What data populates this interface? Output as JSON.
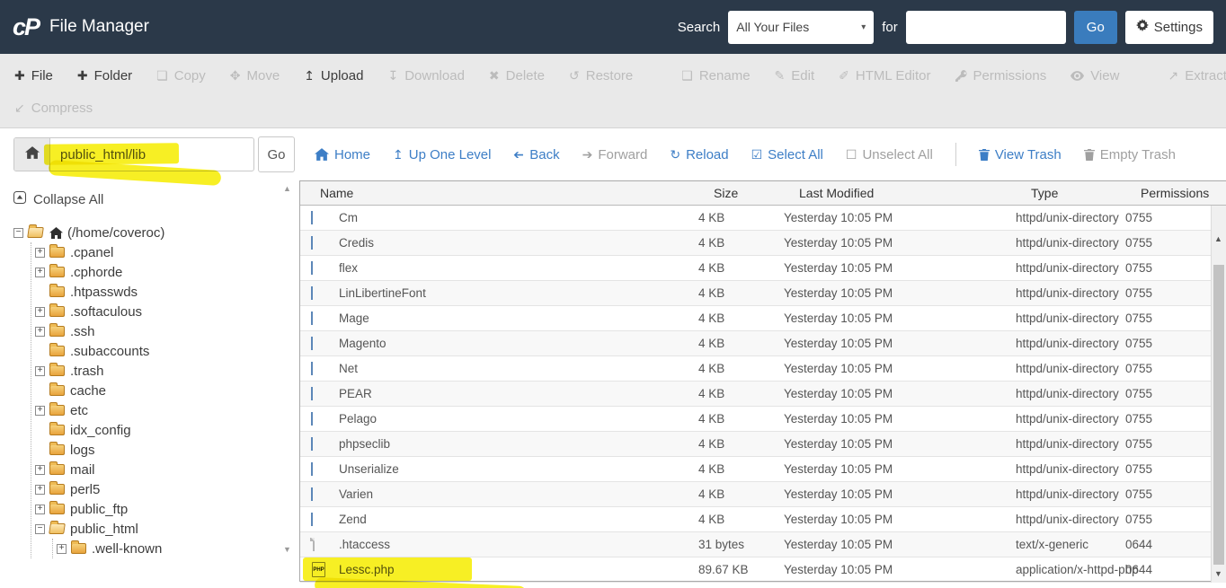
{
  "header": {
    "logo": "cP",
    "title": "File Manager",
    "search_label": "Search",
    "search_scope": "All Your Files",
    "for_label": "for",
    "search_value": "",
    "go_label": "Go",
    "settings_label": "Settings"
  },
  "toolbar": {
    "row1": [
      {
        "label": "File",
        "icon": "plus",
        "enabled": true
      },
      {
        "label": "Folder",
        "icon": "plus",
        "enabled": true
      },
      {
        "label": "Copy",
        "icon": "copy",
        "enabled": false
      },
      {
        "label": "Move",
        "icon": "move",
        "enabled": false
      },
      {
        "label": "Upload",
        "icon": "upload",
        "enabled": true
      },
      {
        "label": "Download",
        "icon": "download",
        "enabled": false
      },
      {
        "label": "Delete",
        "icon": "delete",
        "enabled": false
      },
      {
        "label": "Restore",
        "icon": "restore",
        "enabled": false
      },
      {
        "divider": true
      },
      {
        "label": "Rename",
        "icon": "rename",
        "enabled": false
      },
      {
        "label": "Edit",
        "icon": "edit",
        "enabled": false
      },
      {
        "label": "HTML Editor",
        "icon": "html-editor",
        "enabled": false
      },
      {
        "label": "Permissions",
        "icon": "permissions",
        "enabled": false
      },
      {
        "label": "View",
        "icon": "view",
        "enabled": false
      },
      {
        "divider": true
      },
      {
        "label": "Extract",
        "icon": "extract",
        "enabled": false
      }
    ],
    "row2": [
      {
        "label": "Compress",
        "icon": "compress",
        "enabled": false
      }
    ]
  },
  "pathbar": {
    "path_value": "public_html/lib",
    "go_label": "Go"
  },
  "nav": {
    "items": [
      {
        "label": "Home",
        "icon": "home",
        "active": true
      },
      {
        "label": "Up One Level",
        "icon": "up",
        "active": true
      },
      {
        "label": "Back",
        "icon": "back",
        "active": true
      },
      {
        "label": "Forward",
        "icon": "forward",
        "active": false
      },
      {
        "label": "Reload",
        "icon": "reload",
        "active": true
      },
      {
        "label": "Select All",
        "icon": "checkbox-checked",
        "active": true
      },
      {
        "label": "Unselect All",
        "icon": "checkbox-empty",
        "active": false
      },
      {
        "divider": true
      },
      {
        "label": "View Trash",
        "icon": "trash",
        "active": true
      },
      {
        "label": "Empty Trash",
        "icon": "trash",
        "active": false
      }
    ]
  },
  "sidebar": {
    "collapse_all": "Collapse All",
    "tree": [
      {
        "label": "(/home/coveroc)",
        "level": 0,
        "expander": "minus",
        "folder": "open",
        "home": true
      },
      {
        "label": ".cpanel",
        "level": 1,
        "expander": "plus"
      },
      {
        "label": ".cphorde",
        "level": 1,
        "expander": "plus"
      },
      {
        "label": ".htpasswds",
        "level": 1,
        "expander": "none"
      },
      {
        "label": ".softaculous",
        "level": 1,
        "expander": "plus"
      },
      {
        "label": ".ssh",
        "level": 1,
        "expander": "plus"
      },
      {
        "label": ".subaccounts",
        "level": 1,
        "expander": "none"
      },
      {
        "label": ".trash",
        "level": 1,
        "expander": "plus"
      },
      {
        "label": "cache",
        "level": 1,
        "expander": "none"
      },
      {
        "label": "etc",
        "level": 1,
        "expander": "plus"
      },
      {
        "label": "idx_config",
        "level": 1,
        "expander": "none"
      },
      {
        "label": "logs",
        "level": 1,
        "expander": "none"
      },
      {
        "label": "mail",
        "level": 1,
        "expander": "plus"
      },
      {
        "label": "perl5",
        "level": 1,
        "expander": "plus"
      },
      {
        "label": "public_ftp",
        "level": 1,
        "expander": "plus"
      },
      {
        "label": "public_html",
        "level": 1,
        "expander": "minus",
        "folder": "open"
      },
      {
        "label": ".well-known",
        "level": 2,
        "expander": "plus"
      }
    ]
  },
  "table": {
    "columns": [
      "Name",
      "Size",
      "Last Modified",
      "Type",
      "Permissions"
    ],
    "rows": [
      {
        "name": "Cm",
        "size": "4 KB",
        "modified": "Yesterday 10:05 PM",
        "type": "httpd/unix-directory",
        "perms": "0755",
        "icon": "folder"
      },
      {
        "name": "Credis",
        "size": "4 KB",
        "modified": "Yesterday 10:05 PM",
        "type": "httpd/unix-directory",
        "perms": "0755",
        "icon": "folder"
      },
      {
        "name": "flex",
        "size": "4 KB",
        "modified": "Yesterday 10:05 PM",
        "type": "httpd/unix-directory",
        "perms": "0755",
        "icon": "folder"
      },
      {
        "name": "LinLibertineFont",
        "size": "4 KB",
        "modified": "Yesterday 10:05 PM",
        "type": "httpd/unix-directory",
        "perms": "0755",
        "icon": "folder"
      },
      {
        "name": "Mage",
        "size": "4 KB",
        "modified": "Yesterday 10:05 PM",
        "type": "httpd/unix-directory",
        "perms": "0755",
        "icon": "folder"
      },
      {
        "name": "Magento",
        "size": "4 KB",
        "modified": "Yesterday 10:05 PM",
        "type": "httpd/unix-directory",
        "perms": "0755",
        "icon": "folder"
      },
      {
        "name": "Net",
        "size": "4 KB",
        "modified": "Yesterday 10:05 PM",
        "type": "httpd/unix-directory",
        "perms": "0755",
        "icon": "folder"
      },
      {
        "name": "PEAR",
        "size": "4 KB",
        "modified": "Yesterday 10:05 PM",
        "type": "httpd/unix-directory",
        "perms": "0755",
        "icon": "folder"
      },
      {
        "name": "Pelago",
        "size": "4 KB",
        "modified": "Yesterday 10:05 PM",
        "type": "httpd/unix-directory",
        "perms": "0755",
        "icon": "folder"
      },
      {
        "name": "phpseclib",
        "size": "4 KB",
        "modified": "Yesterday 10:05 PM",
        "type": "httpd/unix-directory",
        "perms": "0755",
        "icon": "folder"
      },
      {
        "name": "Unserialize",
        "size": "4 KB",
        "modified": "Yesterday 10:05 PM",
        "type": "httpd/unix-directory",
        "perms": "0755",
        "icon": "folder"
      },
      {
        "name": "Varien",
        "size": "4 KB",
        "modified": "Yesterday 10:05 PM",
        "type": "httpd/unix-directory",
        "perms": "0755",
        "icon": "folder"
      },
      {
        "name": "Zend",
        "size": "4 KB",
        "modified": "Yesterday 10:05 PM",
        "type": "httpd/unix-directory",
        "perms": "0755",
        "icon": "folder"
      },
      {
        "name": ".htaccess",
        "size": "31 bytes",
        "modified": "Yesterday 10:05 PM",
        "type": "text/x-generic",
        "perms": "0644",
        "icon": "file"
      },
      {
        "name": "Lessc.php",
        "size": "89.67 KB",
        "modified": "Yesterday 10:05 PM",
        "type": "application/x-httpd-php",
        "perms": "0644",
        "icon": "php",
        "highlighted": true
      }
    ]
  },
  "colors": {
    "header_bg": "#2b3949",
    "accent_blue": "#3d7ec6",
    "button_blue": "#3a7cbd",
    "highlight_yellow": "#f7ee11",
    "tree_folder": "#e8a33c",
    "table_folder": "#7da7d8"
  }
}
